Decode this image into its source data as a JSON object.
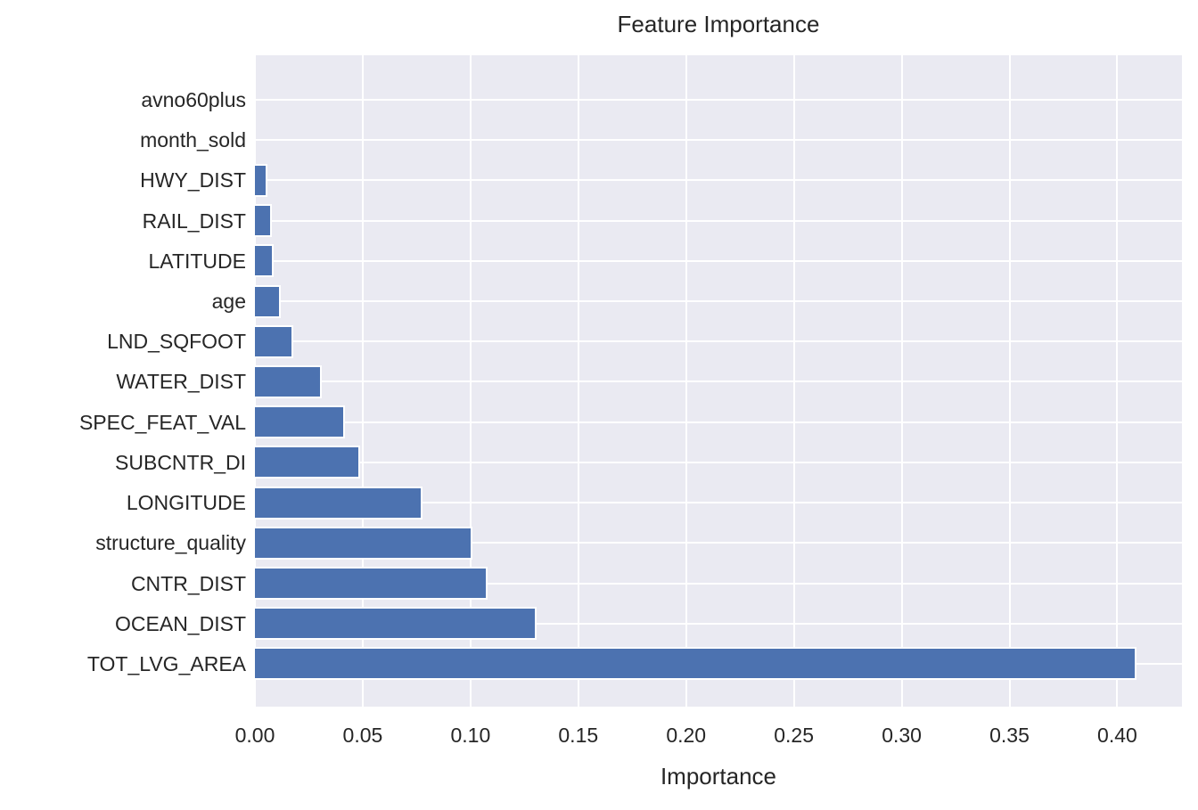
{
  "chart_data": {
    "type": "bar",
    "orientation": "horizontal",
    "title": "Feature Importance",
    "xlabel": "Importance",
    "ylabel": "",
    "categories": [
      "avno60plus",
      "month_sold",
      "HWY_DIST",
      "RAIL_DIST",
      "LATITUDE",
      "age",
      "LND_SQFOOT",
      "WATER_DIST",
      "SPEC_FEAT_VAL",
      "SUBCNTR_DI",
      "LONGITUDE",
      "structure_quality",
      "CNTR_DIST",
      "OCEAN_DIST",
      "TOT_LVG_AREA"
    ],
    "values": [
      0.0,
      0.0,
      0.005,
      0.007,
      0.008,
      0.011,
      0.017,
      0.03,
      0.041,
      0.048,
      0.077,
      0.1,
      0.107,
      0.13,
      0.408
    ],
    "xticks": [
      0.0,
      0.05,
      0.1,
      0.15,
      0.2,
      0.25,
      0.3,
      0.35,
      0.4
    ],
    "xlim": [
      0,
      0.43
    ],
    "grid": true,
    "legend": null,
    "colors": {
      "bar": "#4c72b0",
      "plot_background": "#eaeaf2",
      "grid": "#ffffff",
      "text": "#262626"
    }
  }
}
